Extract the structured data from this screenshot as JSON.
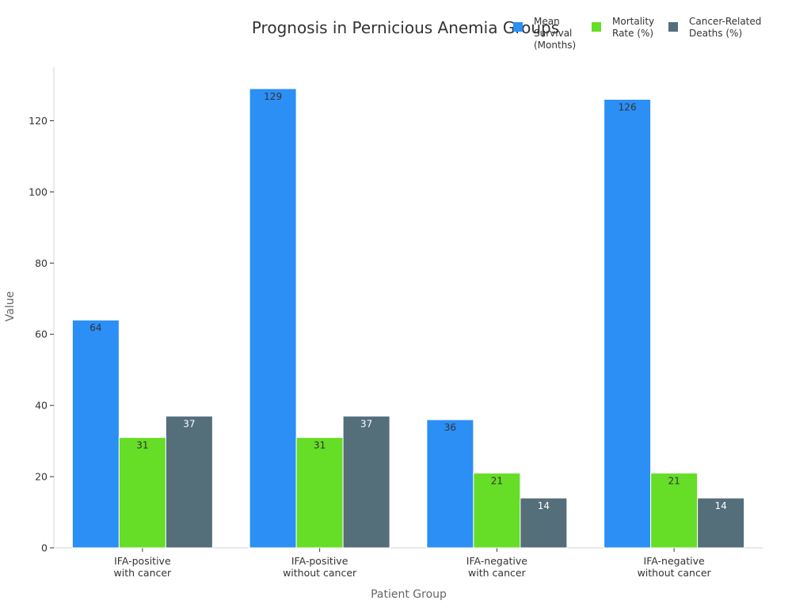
{
  "chart_data": {
    "type": "bar",
    "title": "Prognosis in Pernicious Anemia Groups",
    "xlabel": "Patient Group",
    "ylabel": "Value",
    "ylim": [
      0,
      135
    ],
    "yticks": [
      0,
      20,
      40,
      60,
      80,
      100,
      120
    ],
    "categories": [
      [
        "IFA-positive",
        "with cancer"
      ],
      [
        "IFA-positive",
        "without cancer"
      ],
      [
        "IFA-negative",
        "with cancer"
      ],
      [
        "IFA-negative",
        "without cancer"
      ]
    ],
    "series": [
      {
        "name": [
          "Mean",
          "Survival",
          "(Months)"
        ],
        "color": "#2b8ff5",
        "label_color": "#333333",
        "values": [
          64,
          129,
          36,
          126
        ]
      },
      {
        "name": [
          "Mortality",
          "Rate (%)"
        ],
        "color": "#66dd27",
        "label_color": "#333333",
        "values": [
          31,
          31,
          21,
          21
        ]
      },
      {
        "name": [
          "Cancer-Related",
          "Deaths (%)"
        ],
        "color": "#546e7a",
        "label_color": "#ffffff",
        "values": [
          37,
          37,
          14,
          14
        ]
      }
    ],
    "legend_position": "top-right",
    "grid": false
  }
}
